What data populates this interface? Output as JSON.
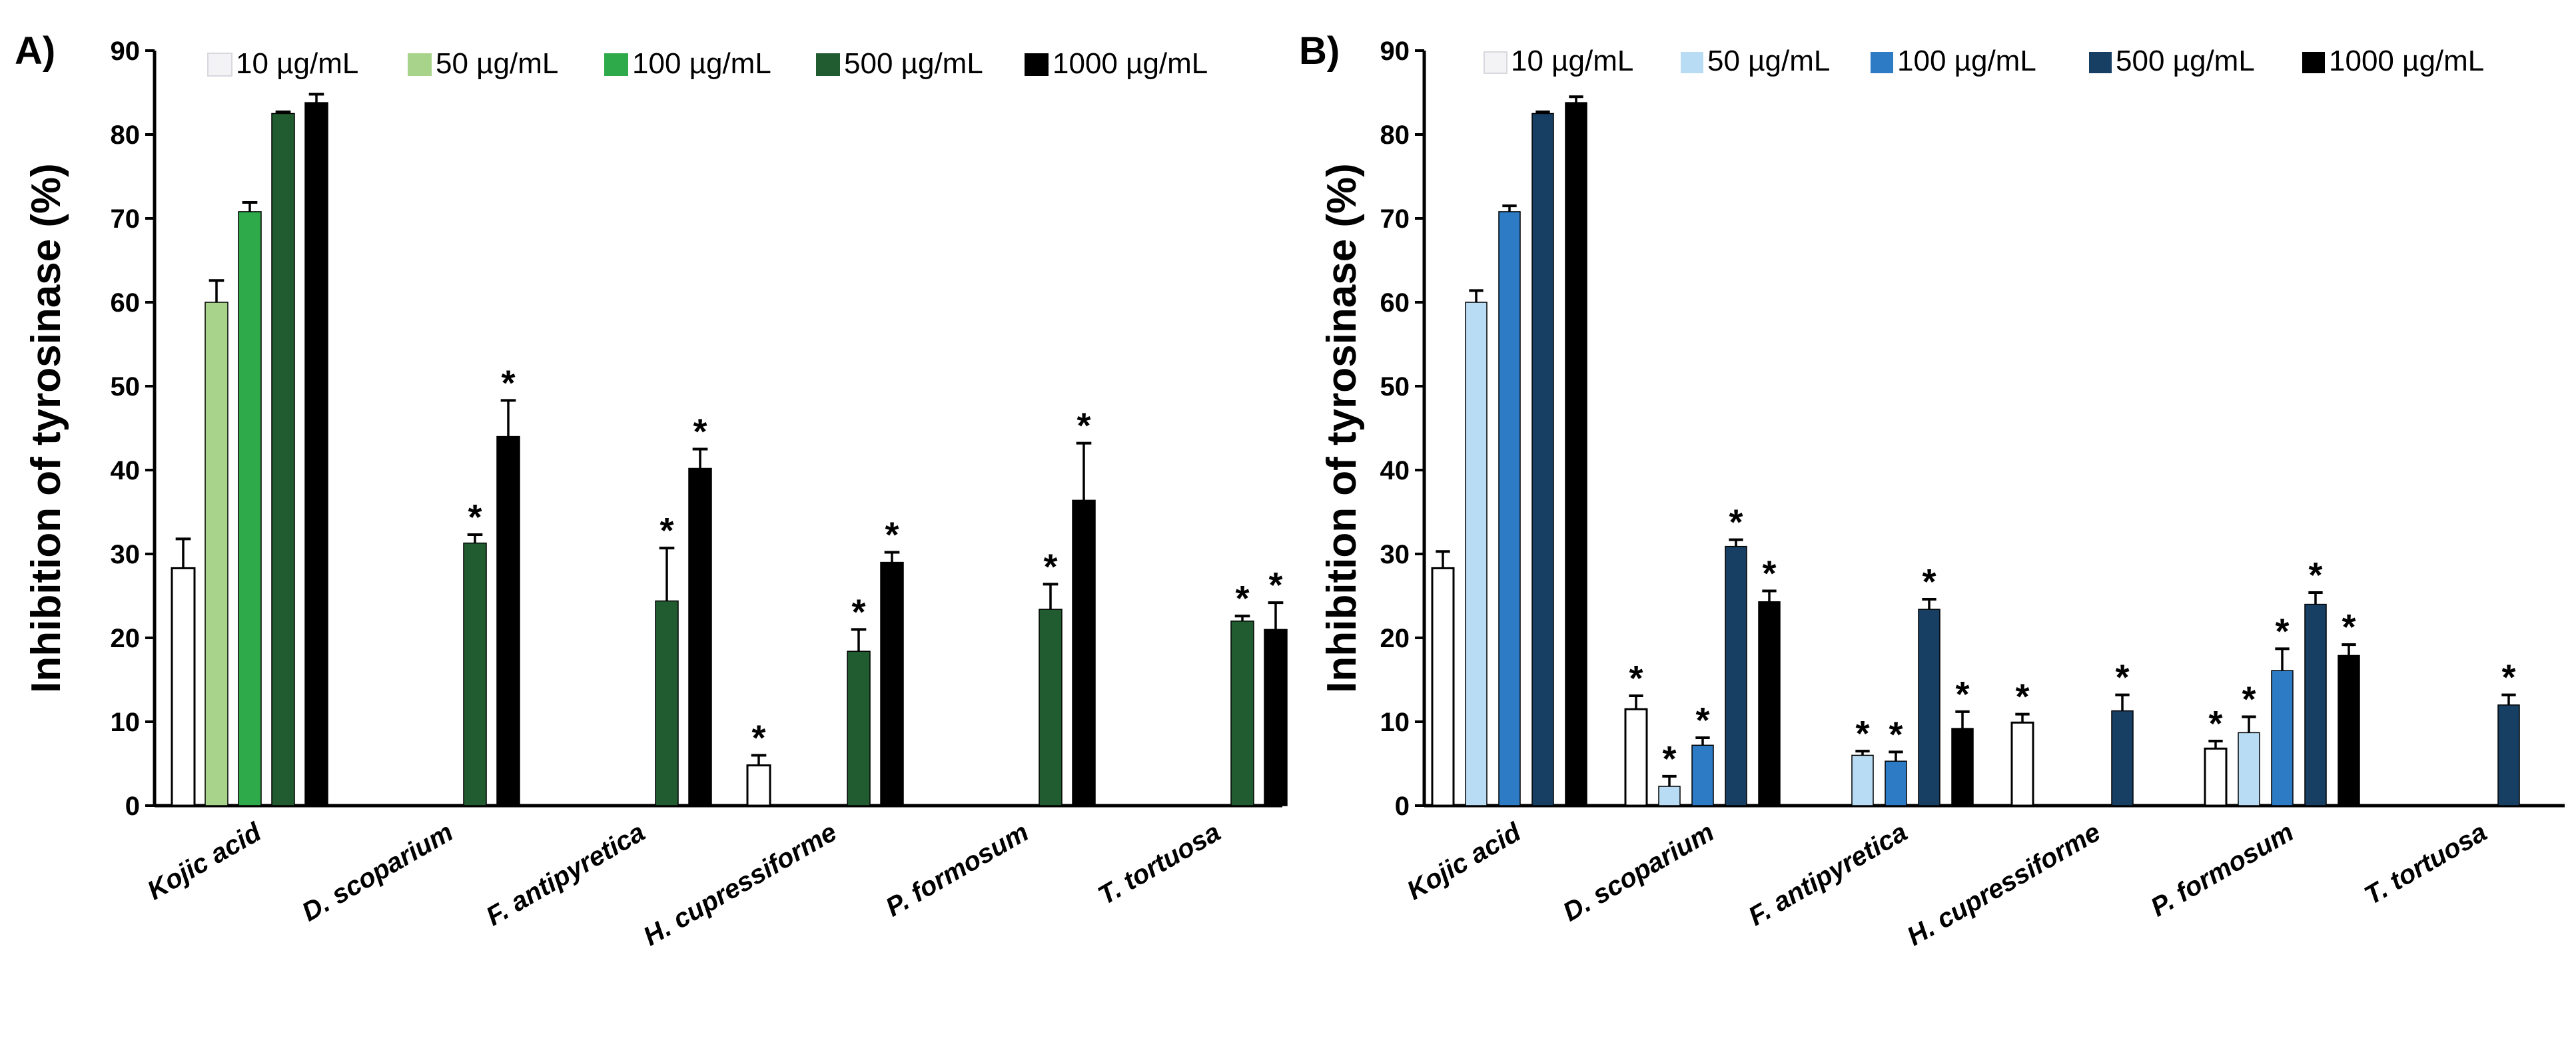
{
  "chart_data": [
    {
      "type": "bar",
      "panel_label": "A)",
      "ylabel": "Inhibition of tyrosinase (%)",
      "xlabel": "",
      "ylim": [
        0,
        90
      ],
      "yticks": [
        "0",
        "10",
        "20",
        "30",
        "40",
        "50",
        "60",
        "70",
        "80",
        "90"
      ],
      "categories": [
        "Kojic acid",
        "D. scoparium",
        "F. antipyretica",
        "H. cupressiforme",
        "P. formosum",
        "T. tortuosa"
      ],
      "legend": "top",
      "series": [
        {
          "name": "10 µg/mL",
          "color": "#ffffff",
          "values": [
            28.3,
            null,
            null,
            4.8,
            null,
            null
          ],
          "errors": [
            3.5,
            null,
            null,
            1.2,
            null,
            null
          ],
          "stars": [
            false,
            false,
            false,
            true,
            false,
            false
          ]
        },
        {
          "name": "50 µg/mL",
          "color": "#a8d38b",
          "values": [
            60.0,
            null,
            null,
            null,
            null,
            null
          ],
          "errors": [
            2.6,
            null,
            null,
            null,
            null,
            null
          ],
          "stars": [
            false,
            false,
            false,
            false,
            false,
            false
          ]
        },
        {
          "name": "100 µg/mL",
          "color": "#2eaa4a",
          "values": [
            70.8,
            null,
            null,
            null,
            null,
            null
          ],
          "errors": [
            1.1,
            null,
            null,
            null,
            null,
            null
          ],
          "stars": [
            false,
            false,
            false,
            false,
            false,
            false
          ]
        },
        {
          "name": "500 µg/mL",
          "color": "#215c31",
          "values": [
            82.5,
            31.3,
            24.4,
            18.4,
            23.4,
            22.0
          ],
          "errors": [
            0.2,
            1.0,
            6.3,
            2.6,
            3.0,
            0.6
          ],
          "stars": [
            false,
            true,
            true,
            true,
            true,
            true
          ]
        },
        {
          "name": "1000 µg/mL",
          "color": "#000000",
          "values": [
            83.8,
            44.0,
            40.2,
            29.0,
            36.4,
            21.0
          ],
          "errors": [
            1.0,
            4.3,
            2.3,
            1.2,
            6.8,
            3.2
          ],
          "stars": [
            false,
            true,
            true,
            true,
            true,
            true
          ]
        }
      ],
      "annotation": "*"
    },
    {
      "type": "bar",
      "panel_label": "B)",
      "ylabel": "Inhibition of tyrosinase (%)",
      "xlabel": "",
      "ylim": [
        0,
        90
      ],
      "yticks": [
        "0",
        "10",
        "20",
        "30",
        "40",
        "50",
        "60",
        "70",
        "80",
        "90"
      ],
      "categories": [
        "Kojic acid",
        "D. scoparium",
        "F. antipyretica",
        "H. cupressiforme",
        "P. formosum",
        "T. tortuosa"
      ],
      "legend": "top",
      "series": [
        {
          "name": "10 µg/mL",
          "color": "#ffffff",
          "values": [
            28.3,
            11.5,
            null,
            9.9,
            6.8,
            null
          ],
          "errors": [
            2.0,
            1.6,
            null,
            1.0,
            0.9,
            null
          ],
          "stars": [
            false,
            true,
            false,
            true,
            true,
            false
          ]
        },
        {
          "name": "50 µg/mL",
          "color": "#b7dcf3",
          "values": [
            60.0,
            2.3,
            6.0,
            null,
            8.7,
            null
          ],
          "errors": [
            1.4,
            1.2,
            0.5,
            null,
            1.9,
            null
          ],
          "stars": [
            false,
            true,
            true,
            false,
            true,
            false
          ]
        },
        {
          "name": "100 µg/mL",
          "color": "#2c7bc4",
          "values": [
            70.8,
            7.2,
            5.3,
            null,
            16.1,
            null
          ],
          "errors": [
            0.7,
            0.9,
            1.1,
            null,
            2.6,
            null
          ],
          "stars": [
            false,
            true,
            true,
            false,
            true,
            false
          ]
        },
        {
          "name": "500 µg/mL",
          "color": "#163f63",
          "values": [
            82.5,
            30.9,
            23.4,
            11.3,
            24.0,
            12.0
          ],
          "errors": [
            0.2,
            0.8,
            1.2,
            1.9,
            1.4,
            1.2
          ],
          "stars": [
            false,
            true,
            true,
            true,
            true,
            true
          ]
        },
        {
          "name": "1000 µg/mL",
          "color": "#000000",
          "values": [
            83.8,
            24.3,
            9.2,
            null,
            17.9,
            null
          ],
          "errors": [
            0.7,
            1.3,
            2.0,
            null,
            1.3,
            null
          ],
          "stars": [
            false,
            true,
            true,
            false,
            true,
            false
          ]
        }
      ],
      "annotation": "*"
    }
  ]
}
